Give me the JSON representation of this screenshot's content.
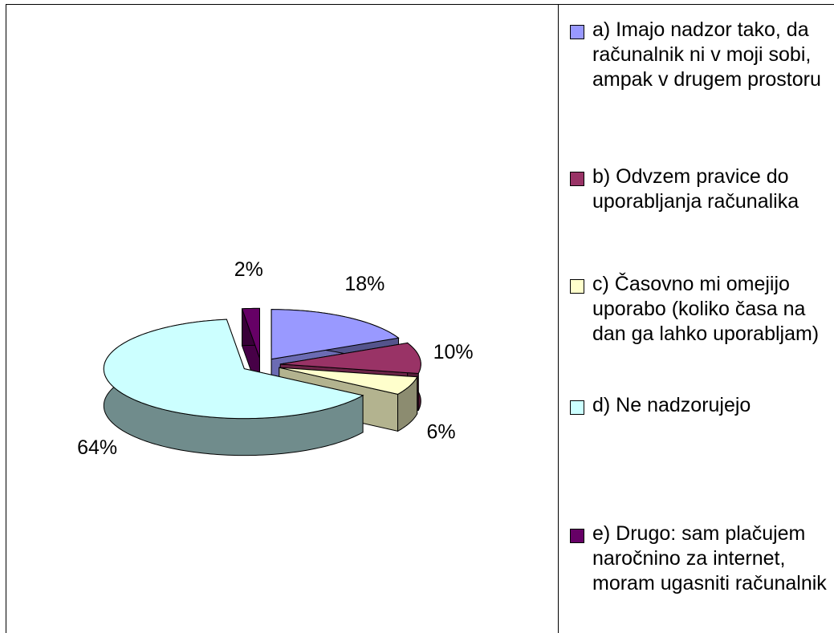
{
  "chart_data": {
    "type": "pie3d",
    "categories": [
      "a) Imajo nadzor tako, da računalnik ni v moji sobi, ampak v drugem prostoru",
      "b) Odvzem pravice do uporabljanja računalika",
      "c) Časovno mi omejijo uporabo (koliko časa na dan ga lahko uporabljam)",
      "d) Ne nadzorujejo",
      "e) Drugo: sam plačujem naročnino za internet, moram ugasniti računalnik"
    ],
    "values": [
      18,
      10,
      6,
      64,
      2
    ],
    "value_labels": [
      "18%",
      "10%",
      "6%",
      "64%",
      "2%"
    ],
    "colors": [
      "#9999ff",
      "#993366",
      "#ffffcc",
      "#ccffff",
      "#660066"
    ],
    "legend": "right"
  }
}
